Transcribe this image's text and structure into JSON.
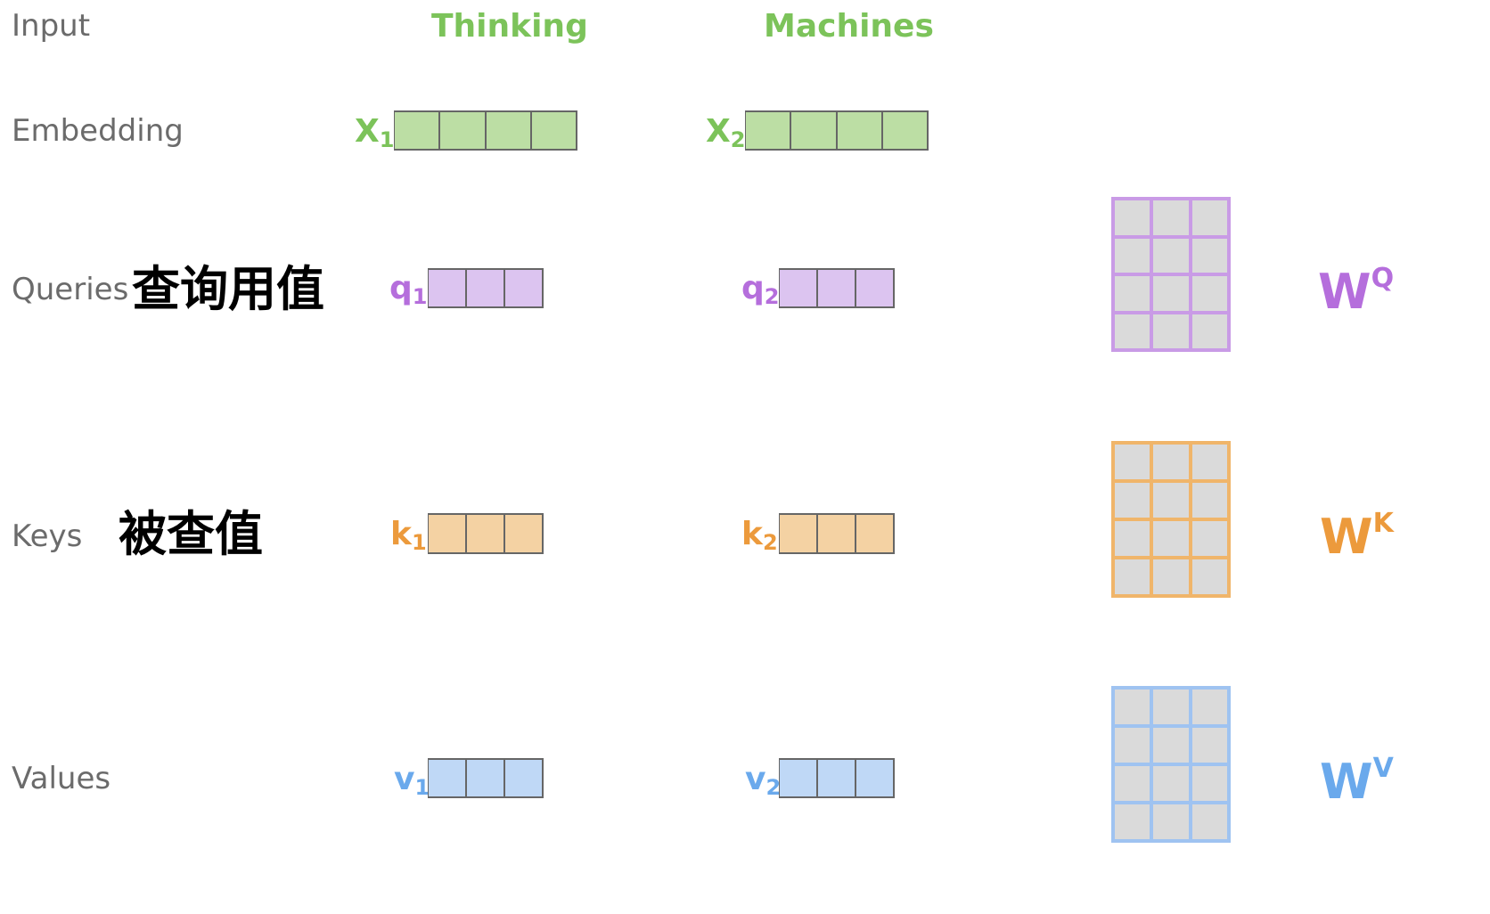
{
  "rows": {
    "input": "Input",
    "embedding": "Embedding",
    "queries": "Queries",
    "keys": "Keys",
    "values": "Values"
  },
  "cjk": {
    "queries": "查询用值",
    "keys": "被查值"
  },
  "words": [
    "Thinking",
    "Machines"
  ],
  "vectors": {
    "x1": {
      "base": "X",
      "sub": "1"
    },
    "x2": {
      "base": "X",
      "sub": "2"
    },
    "q1": {
      "base": "q",
      "sub": "1"
    },
    "q2": {
      "base": "q",
      "sub": "2"
    },
    "k1": {
      "base": "k",
      "sub": "1"
    },
    "k2": {
      "base": "k",
      "sub": "2"
    },
    "v1": {
      "base": "v",
      "sub": "1"
    },
    "v2": {
      "base": "v",
      "sub": "2"
    }
  },
  "weights": {
    "wq": {
      "base": "W",
      "sup": "Q"
    },
    "wk": {
      "base": "W",
      "sup": "K"
    },
    "wv": {
      "base": "W",
      "sup": "V"
    }
  },
  "colors": {
    "green_text": "#7cc35a",
    "green_fill": "#bcdea4",
    "purple_text": "#b56edc",
    "purple_fill": "#dcc4f0",
    "purple_border": "#c99be6",
    "orange_text": "#ec9a3c",
    "orange_fill": "#f4d2a3",
    "orange_border": "#f0b56a",
    "blue_text": "#6aa9ec",
    "blue_fill": "#bfd8f6",
    "blue_border": "#9fc3f1",
    "row_label": "#6b6b6b"
  }
}
